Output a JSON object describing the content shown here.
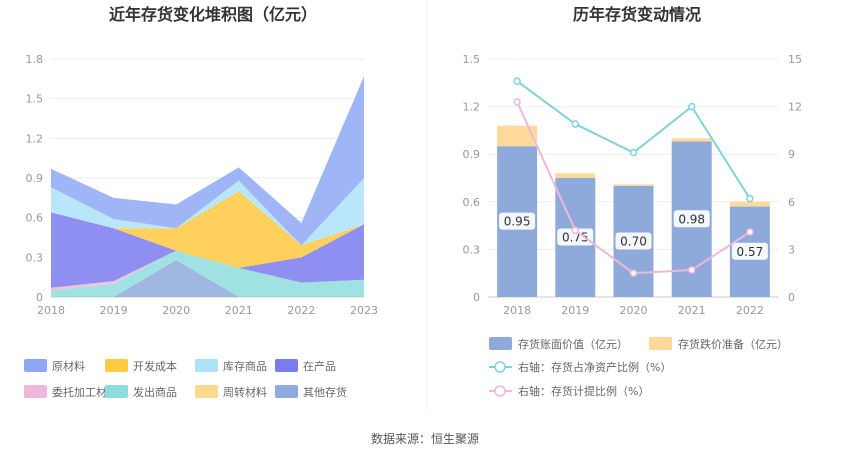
{
  "source": "数据来源：恒生聚源",
  "chart_data": [
    {
      "type": "area",
      "stacked": true,
      "title": "近年存货变化堆积图（亿元）",
      "x": [
        "2018",
        "2019",
        "2020",
        "2021",
        "2022",
        "2023"
      ],
      "ylim": [
        0,
        1.8
      ],
      "yticks": [
        "0",
        "0.3",
        "0.6",
        "0.9",
        "1.2",
        "1.5",
        "1.8"
      ],
      "legend_position": "bottom",
      "series": [
        {
          "name": "其他存货",
          "color": "#8faadc",
          "values": [
            0.0,
            0.0,
            0.28,
            0.0,
            0.0,
            0.0
          ]
        },
        {
          "name": "周转材料",
          "color": "#ffd98e",
          "values": [
            0.0,
            0.0,
            0.0,
            0.0,
            0.0,
            0.0
          ]
        },
        {
          "name": "发出商品",
          "color": "#8fdcdc",
          "values": [
            0.05,
            0.1,
            0.07,
            0.22,
            0.11,
            0.13
          ]
        },
        {
          "name": "委托加工材料",
          "color": "#f0b8d8",
          "values": [
            0.02,
            0.02,
            0.0,
            0.0,
            0.0,
            0.0
          ]
        },
        {
          "name": "在产品",
          "color": "#7b7bf0",
          "values": [
            0.57,
            0.4,
            0.0,
            0.0,
            0.19,
            0.42
          ]
        },
        {
          "name": "开发成本",
          "color": "#ffc940",
          "values": [
            0.0,
            0.0,
            0.17,
            0.58,
            0.09,
            0.0
          ]
        },
        {
          "name": "库存商品",
          "color": "#aee2f8",
          "values": [
            0.19,
            0.07,
            0.0,
            0.08,
            0.0,
            0.35
          ]
        },
        {
          "name": "原材料",
          "color": "#8fa8f5",
          "values": [
            0.14,
            0.16,
            0.18,
            0.1,
            0.17,
            0.77
          ]
        }
      ],
      "legend_order": [
        "原材料",
        "开发成本",
        "库存商品",
        "在产品",
        "委托加工材料",
        "发出商品",
        "周转材料",
        "其他存货"
      ]
    },
    {
      "type": "bar",
      "stacked": true,
      "title": "历年存货变动情况",
      "categories": [
        "2018",
        "2019",
        "2020",
        "2021",
        "2022"
      ],
      "ylim": [
        0,
        1.5
      ],
      "yticks": [
        "0",
        "0.3",
        "0.6",
        "0.9",
        "1.2",
        "1.5"
      ],
      "y2lim": [
        0,
        15
      ],
      "y2ticks": [
        "0",
        "3",
        "6",
        "9",
        "12",
        "15"
      ],
      "bar_series": [
        {
          "name": "存货账面价值（亿元）",
          "color": "#8eaadb",
          "values": [
            0.95,
            0.75,
            0.7,
            0.98,
            0.57
          ],
          "labels": [
            "0.95",
            "0.75",
            "0.70",
            "0.98",
            "0.57"
          ]
        },
        {
          "name": "存货跌价准备（亿元）",
          "color": "#ffd99a",
          "values": [
            0.13,
            0.03,
            0.01,
            0.02,
            0.03
          ]
        }
      ],
      "line_series": [
        {
          "name": "右轴：存货占净资产比例（%）",
          "color": "#7fd3d8",
          "axis": "right",
          "values": [
            13.6,
            10.9,
            9.1,
            12.0,
            6.2
          ]
        },
        {
          "name": "右轴：存货计提比例（%）",
          "color": "#f0b8d8",
          "axis": "right",
          "values": [
            12.3,
            4.2,
            1.5,
            1.7,
            4.1
          ]
        }
      ]
    }
  ]
}
